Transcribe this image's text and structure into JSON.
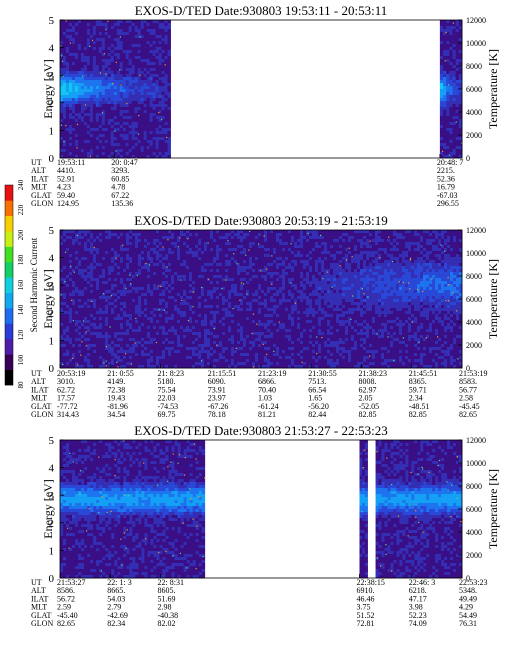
{
  "colorbar": {
    "label": "Second Harmonic Current",
    "ticks": [
      "80",
      "100",
      "120",
      "140",
      "160",
      "180",
      "200",
      "220",
      "240"
    ],
    "colors": [
      "#000000",
      "#3a0058",
      "#4f1ea8",
      "#2a3cd8",
      "#1e6cf0",
      "#10a8f0",
      "#10d0e0",
      "#10d068",
      "#40e020",
      "#c8f010",
      "#f8d000",
      "#f87000",
      "#e81010"
    ]
  },
  "panels": [
    {
      "title": "EXOS-D/TED   Date:930803  19:53:11 - 20:53:11",
      "ylabel": "Energy [eV]",
      "y2label": "Temperature [K]",
      "yticks": [
        "0",
        "1",
        "2",
        "3",
        "4",
        "5"
      ],
      "y2ticks": [
        "0",
        "2000",
        "4000",
        "6000",
        "8000",
        "10000",
        "12000"
      ],
      "row_labels": [
        "UT",
        "ALT",
        "ILAT",
        "MLT",
        "GLAT",
        "GLON"
      ],
      "columns": [
        {
          "pos": 0.0,
          "values": [
            "19:53:11",
            "4410.",
            "52.91",
            "4.23",
            "59.40",
            "124.95"
          ]
        },
        {
          "pos": 0.135,
          "values": [
            "20: 0:47",
            "3293.",
            "60.85",
            "4.78",
            "67.22",
            "135.36"
          ]
        },
        {
          "pos": 0.945,
          "values": [
            "20:48: 7",
            "2215.",
            "52.36",
            "16.79",
            "-67.03",
            "296.55"
          ]
        }
      ],
      "data_segments": [
        [
          0.0,
          0.275
        ],
        [
          0.945,
          1.0
        ]
      ]
    },
    {
      "title": "EXOS-D/TED   Date:930803  20:53:19 - 21:53:19",
      "ylabel": "Energy [eV]",
      "y2label": "Temperature [K]",
      "yticks": [
        "0",
        "1",
        "2",
        "3",
        "4",
        "5"
      ],
      "y2ticks": [
        "0",
        "2000",
        "4000",
        "6000",
        "8000",
        "10000",
        "12000"
      ],
      "row_labels": [
        "UT",
        "ALT",
        "ILAT",
        "MLT",
        "GLAT",
        "GLON"
      ],
      "columns": [
        {
          "pos": 0.0,
          "values": [
            "20:53:19",
            "3010.",
            "62.72",
            "17.57",
            "-77.72",
            "314.43"
          ]
        },
        {
          "pos": 0.125,
          "values": [
            "21: 0:55",
            "4149.",
            "72.38",
            "19.43",
            "-81.96",
            "34.54"
          ]
        },
        {
          "pos": 0.25,
          "values": [
            "21: 8:23",
            "5180.",
            "75.54",
            "22.03",
            "-74.53",
            "69.75"
          ]
        },
        {
          "pos": 0.375,
          "values": [
            "21:15:51",
            "6090.",
            "73.91",
            "23.97",
            "-67.26",
            "78.18"
          ]
        },
        {
          "pos": 0.5,
          "values": [
            "21:23:19",
            "6866.",
            "70.40",
            "1.03",
            "-61.24",
            "81.21"
          ]
        },
        {
          "pos": 0.625,
          "values": [
            "21:30:55",
            "7513.",
            "66.54",
            "1.65",
            "-56.20",
            "82.44"
          ]
        },
        {
          "pos": 0.75,
          "values": [
            "21:38:23",
            "8008.",
            "62.97",
            "2.05",
            "-52.05",
            "82.85"
          ]
        },
        {
          "pos": 0.875,
          "values": [
            "21:45:51",
            "8365.",
            "59.71",
            "2.34",
            "-48.51",
            "82.85"
          ]
        },
        {
          "pos": 1.0,
          "values": [
            "21:53:19",
            "8583.",
            "56.77",
            "2.58",
            "-45.45",
            "82.65"
          ]
        }
      ],
      "data_segments": [
        [
          0.0,
          1.0
        ]
      ]
    },
    {
      "title": "EXOS-D/TED   Date:930803  21:53:27 - 22:53:23",
      "ylabel": "Energy [eV]",
      "y2label": "Temperature [K]",
      "yticks": [
        "0",
        "1",
        "2",
        "3",
        "4",
        "5"
      ],
      "y2ticks": [
        "0",
        "2000",
        "4000",
        "6000",
        "8000",
        "10000",
        "12000"
      ],
      "row_labels": [
        "UT",
        "ALT",
        "ILAT",
        "MLT",
        "GLAT",
        "GLON"
      ],
      "columns": [
        {
          "pos": 0.0,
          "values": [
            "21:53:27",
            "8586.",
            "56.72",
            "2.59",
            "-45.40",
            "82.65"
          ]
        },
        {
          "pos": 0.125,
          "values": [
            "22: 1: 3",
            "8665.",
            "54.03",
            "2.79",
            "-42.69",
            "82.34"
          ]
        },
        {
          "pos": 0.25,
          "values": [
            "22: 8:31",
            "8605.",
            "51.69",
            "2.98",
            "-40.38",
            "82.02"
          ]
        },
        {
          "pos": 0.745,
          "values": [
            "22:38:15",
            "6910.",
            "46.46",
            "3.75",
            "51.52",
            "72.81"
          ]
        },
        {
          "pos": 0.875,
          "values": [
            "22:46: 3",
            "6218.",
            "47.17",
            "3.98",
            "52.23",
            "74.09"
          ]
        },
        {
          "pos": 1.0,
          "values": [
            "22:53:23",
            "5348.",
            "49.49",
            "4.29",
            "54.49",
            "76.31"
          ]
        }
      ],
      "data_segments": [
        [
          0.0,
          0.36
        ],
        [
          0.745,
          0.765
        ],
        [
          0.785,
          1.0
        ]
      ]
    }
  ]
}
